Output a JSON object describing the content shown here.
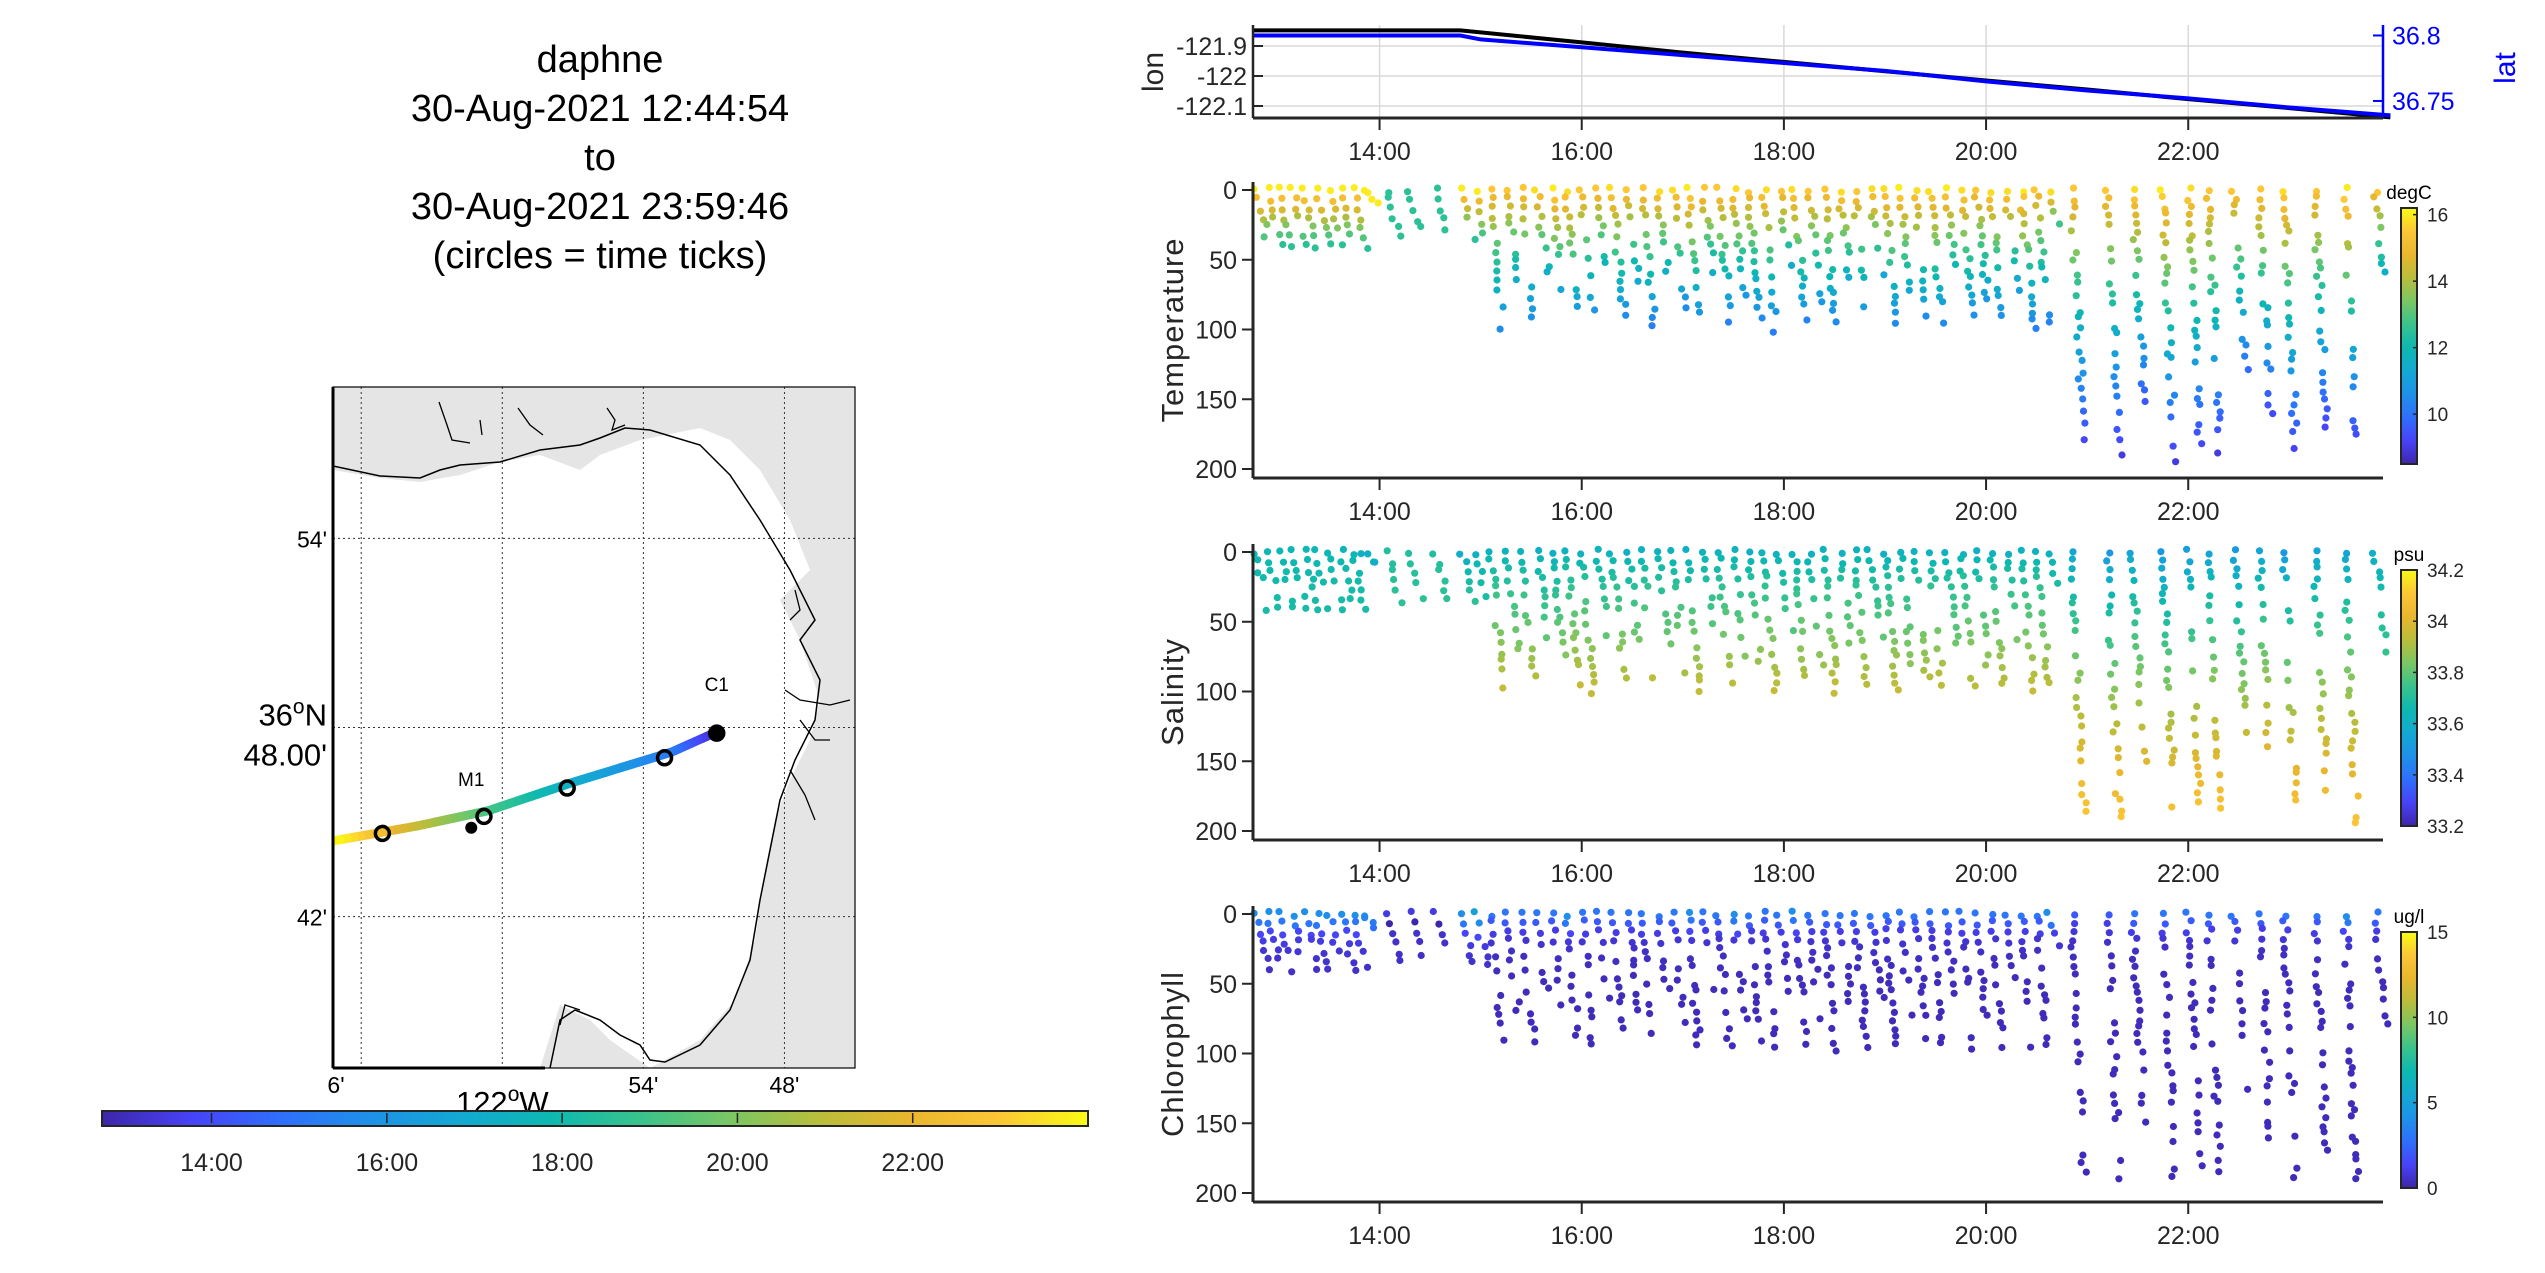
{
  "title": {
    "lines": [
      "daphne",
      "30-Aug-2021 12:44:54",
      "to",
      "30-Aug-2021 23:59:46",
      "(circles = time ticks)"
    ]
  },
  "map": {
    "lat_ticks": [
      {
        "deg": 36.9,
        "label": "54'"
      },
      {
        "deg": 36.8,
        "label_line1": "36",
        "label_sup": "o",
        "label_line1b": "N",
        "label_line2": "48.00'"
      },
      {
        "deg": 36.7,
        "label": "42'"
      }
    ],
    "lon_ticks": [
      {
        "deg": -122.1,
        "label": "6'"
      },
      {
        "deg": -122.0,
        "label_main": "122",
        "label_sup": "o",
        "label_end": "W"
      },
      {
        "deg": -121.9,
        "label": "54'"
      },
      {
        "deg": -121.8,
        "label": "48'"
      }
    ],
    "lon_range": [
      -122.12,
      -121.75
    ],
    "lat_range": [
      36.62,
      36.98
    ],
    "stations": [
      {
        "name": "C1",
        "lon": -121.848,
        "lat": 36.797
      },
      {
        "name": "M1",
        "lon": -122.022,
        "lat": 36.747
      }
    ],
    "track": [
      {
        "lon": -121.847,
        "lat": 36.798,
        "t": 12.75
      },
      {
        "lon": -121.88,
        "lat": 36.787,
        "t": 15.0
      },
      {
        "lon": -121.95,
        "lat": 36.771,
        "t": 17.0
      },
      {
        "lon": -122.01,
        "lat": 36.756,
        "t": 19.0
      },
      {
        "lon": -122.06,
        "lat": 36.748,
        "t": 21.0
      },
      {
        "lon": -122.12,
        "lat": 36.74,
        "t": 24.0
      }
    ],
    "time_tick_circles": [
      {
        "lon": -121.848,
        "lat": 36.797
      },
      {
        "lon": -121.885,
        "lat": 36.784
      },
      {
        "lon": -121.954,
        "lat": 36.768
      },
      {
        "lon": -122.013,
        "lat": 36.753
      },
      {
        "lon": -122.085,
        "lat": 36.744
      }
    ],
    "colorbar": {
      "range_hours": [
        12.75,
        24.0
      ],
      "ticks": [
        "14:00",
        "16:00",
        "18:00",
        "20:00",
        "22:00"
      ],
      "tick_hours": [
        14,
        16,
        18,
        20,
        22
      ]
    }
  },
  "chart_data": [
    {
      "type": "line",
      "title": "",
      "xlabel": "",
      "ylabel": "lon",
      "ylabel_right": "lat",
      "x_ticks": [
        "14:00",
        "16:00",
        "18:00",
        "20:00",
        "22:00"
      ],
      "x_tick_hours": [
        14,
        16,
        18,
        20,
        22
      ],
      "xlim_hours": [
        12.748,
        23.996
      ],
      "ylim": [
        -122.14,
        -121.83
      ],
      "y_ticks": [
        "-121.9",
        "-122",
        "-122.1"
      ],
      "y_tick_values": [
        -121.9,
        -122.0,
        -122.1
      ],
      "ylim_right": [
        36.737,
        36.808
      ],
      "y_ticks_right": [
        "36.8",
        "36.75"
      ],
      "y_tick_values_right": [
        36.8,
        36.75
      ],
      "grid": true,
      "series": [
        {
          "name": "lon",
          "color": "#000000",
          "x": [
            12.75,
            14.8,
            16.0,
            17.0,
            18.0,
            19.0,
            20.0,
            21.0,
            22.0,
            23.0,
            24.0
          ],
          "y": [
            -121.848,
            -121.848,
            -121.888,
            -121.922,
            -121.953,
            -121.984,
            -122.015,
            -122.045,
            -122.077,
            -122.107,
            -122.138
          ]
        },
        {
          "name": "lat",
          "color": "#0000ff",
          "axis": "right",
          "x": [
            12.75,
            14.8,
            15.0,
            16.0,
            17.0,
            18.0,
            19.0,
            20.0,
            21.0,
            22.0,
            23.0,
            24.0
          ],
          "y": [
            36.8,
            36.8,
            36.797,
            36.791,
            36.785,
            36.779,
            36.773,
            36.765,
            36.758,
            36.752,
            36.745,
            36.739
          ]
        }
      ]
    },
    {
      "type": "scatter",
      "ylabel": "Temperature",
      "colorbar_label": "degC",
      "colorbar_range": [
        8.5,
        16.2
      ],
      "colorbar_ticks": [
        "16",
        "14",
        "12",
        "10"
      ],
      "colorbar_tick_values": [
        16,
        14,
        12,
        10
      ],
      "x_ticks": [
        "14:00",
        "16:00",
        "18:00",
        "20:00",
        "22:00"
      ],
      "x_tick_hours": [
        14,
        16,
        18,
        20,
        22
      ],
      "ylim": [
        0,
        205
      ],
      "y_ticks": [
        "0",
        "50",
        "100",
        "150",
        "200"
      ],
      "y_tick_values": [
        0,
        50,
        100,
        150,
        200
      ],
      "profiles": "generated"
    },
    {
      "type": "scatter",
      "ylabel": "Salinity",
      "colorbar_label": "psu",
      "colorbar_range": [
        33.2,
        34.2
      ],
      "colorbar_ticks": [
        "34.2",
        "34",
        "33.8",
        "33.6",
        "33.4",
        "33.2"
      ],
      "colorbar_tick_values": [
        34.2,
        34.0,
        33.8,
        33.6,
        33.4,
        33.2
      ],
      "x_ticks": [
        "14:00",
        "16:00",
        "18:00",
        "20:00",
        "22:00"
      ],
      "x_tick_hours": [
        14,
        16,
        18,
        20,
        22
      ],
      "ylim": [
        0,
        205
      ],
      "y_ticks": [
        "0",
        "50",
        "100",
        "150",
        "200"
      ],
      "y_tick_values": [
        0,
        50,
        100,
        150,
        200
      ]
    },
    {
      "type": "scatter",
      "ylabel": "Chlorophyll",
      "colorbar_label": "ug/l",
      "colorbar_range": [
        0,
        15
      ],
      "colorbar_ticks": [
        "15",
        "10",
        "5",
        "0"
      ],
      "colorbar_tick_values": [
        15,
        10,
        5,
        0
      ],
      "x_ticks": [
        "14:00",
        "16:00",
        "18:00",
        "20:00",
        "22:00"
      ],
      "x_tick_hours": [
        14,
        16,
        18,
        20,
        22
      ],
      "ylim": [
        0,
        205
      ],
      "y_ticks": [
        "0",
        "50",
        "100",
        "150",
        "200"
      ],
      "y_tick_values": [
        0,
        50,
        100,
        150,
        200
      ]
    }
  ],
  "profiles": {
    "times": [
      12.78,
      12.9,
      13.02,
      13.14,
      13.26,
      13.38,
      13.5,
      13.62,
      13.74,
      13.84,
      14.08,
      14.3,
      14.55,
      14.82,
      14.95,
      15.1,
      15.25,
      15.4,
      15.55,
      15.7,
      15.85,
      16.0,
      16.15,
      16.3,
      16.45,
      16.6,
      16.75,
      16.9,
      17.05,
      17.2,
      17.35,
      17.5,
      17.65,
      17.8,
      17.95,
      18.1,
      18.25,
      18.4,
      18.55,
      18.7,
      18.85,
      19.0,
      19.15,
      19.3,
      19.45,
      19.6,
      19.75,
      19.9,
      20.05,
      20.2,
      20.35,
      20.5,
      20.62,
      20.85,
      21.2,
      21.45,
      21.75,
      22.0,
      22.2,
      22.45,
      22.7,
      22.95,
      23.25,
      23.55,
      23.85
    ],
    "max_depth": [
      40,
      40,
      40,
      40,
      40,
      40,
      40,
      40,
      40,
      8,
      35,
      35,
      35,
      35,
      38,
      98,
      70,
      90,
      60,
      72,
      95,
      100,
      60,
      90,
      70,
      98,
      65,
      85,
      100,
      60,
      95,
      75,
      90,
      100,
      55,
      95,
      80,
      100,
      70,
      95,
      60,
      100,
      85,
      90,
      100,
      65,
      95,
      80,
      95,
      70,
      100,
      95,
      30,
      185,
      190,
      150,
      195,
      180,
      190,
      130,
      160,
      190,
      170,
      195,
      80
    ],
    "temperature_surface": [
      16,
      16,
      16,
      16,
      16,
      16,
      16,
      16,
      16,
      16,
      12.5,
      12.5,
      12.5,
      16,
      16,
      15.5,
      15.5,
      15.5,
      15.8,
      16,
      15.8,
      15.5,
      15.5,
      15.8,
      15.5,
      15.5,
      15.8,
      15.8,
      16,
      15.5,
      15.5,
      15.8,
      15.5,
      15.8,
      15.5,
      15.8,
      15.5,
      15.5,
      15.8,
      15.5,
      15.8,
      15.8,
      16,
      15.8,
      15.8,
      16,
      15.8,
      15.5,
      15.8,
      15.8,
      16,
      15.5,
      15.8,
      15.5,
      15.5,
      15.8,
      16,
      15.8,
      15.5,
      15.5,
      15.5,
      15.8,
      15.5,
      16,
      15.5
    ],
    "temperature_bottom": [
      12.5,
      12.5,
      12.5,
      12.5,
      12.5,
      12.5,
      12.5,
      12.5,
      12.5,
      16,
      12.5,
      12.5,
      12.5,
      12.5,
      12.3,
      10.5,
      11.2,
      10.6,
      11.5,
      11.2,
      10.5,
      10.2,
      11.4,
      10.5,
      11,
      10.2,
      11.2,
      10.5,
      10.2,
      11.5,
      10.3,
      10.8,
      10.5,
      10.2,
      11.5,
      10.3,
      10.8,
      10.2,
      11,
      10.4,
      11.2,
      10.2,
      10.6,
      10.5,
      10.2,
      11.2,
      10.3,
      10.8,
      10.3,
      11,
      10.2,
      10.3,
      12,
      9.1,
      9.0,
      9.5,
      9.0,
      9.3,
      9.0,
      9.8,
      9.3,
      9.0,
      9.2,
      8.8,
      10.5
    ],
    "salinity_surface": [
      33.65,
      33.65,
      33.65,
      33.65,
      33.65,
      33.65,
      33.65,
      33.65,
      33.65,
      33.6,
      33.7,
      33.7,
      33.7,
      33.6,
      33.62,
      33.62,
      33.62,
      33.62,
      33.6,
      33.6,
      33.62,
      33.62,
      33.62,
      33.62,
      33.6,
      33.62,
      33.62,
      33.62,
      33.6,
      33.62,
      33.62,
      33.62,
      33.6,
      33.62,
      33.62,
      33.62,
      33.6,
      33.62,
      33.62,
      33.62,
      33.62,
      33.6,
      33.62,
      33.62,
      33.62,
      33.62,
      33.62,
      33.6,
      33.62,
      33.62,
      33.62,
      33.62,
      33.62,
      33.55,
      33.5,
      33.55,
      33.5,
      33.52,
      33.55,
      33.5,
      33.55,
      33.5,
      33.55,
      33.55,
      33.6
    ],
    "salinity_bottom": [
      33.68,
      33.68,
      33.68,
      33.68,
      33.68,
      33.68,
      33.68,
      33.68,
      33.68,
      33.6,
      33.72,
      33.72,
      33.72,
      33.72,
      33.7,
      33.95,
      33.85,
      33.92,
      33.8,
      33.85,
      33.95,
      33.95,
      33.8,
      33.92,
      33.85,
      33.95,
      33.82,
      33.9,
      33.95,
      33.8,
      33.93,
      33.85,
      33.92,
      33.95,
      33.78,
      33.93,
      33.88,
      33.95,
      33.85,
      33.93,
      33.8,
      33.95,
      33.88,
      33.92,
      33.95,
      33.82,
      33.93,
      33.88,
      33.93,
      33.85,
      33.95,
      33.93,
      33.7,
      34.1,
      34.1,
      34.0,
      34.1,
      34.08,
      34.1,
      33.95,
      34.05,
      34.1,
      34.05,
      34.1,
      33.75
    ],
    "chlorophyll_surface": [
      4,
      4,
      4,
      4,
      4,
      4,
      4,
      4,
      4,
      4,
      1,
      1,
      1,
      4,
      5,
      3,
      3,
      3,
      3,
      3,
      4,
      3,
      3,
      3,
      3,
      3,
      3,
      3,
      4,
      3,
      3,
      4,
      3,
      3,
      3,
      4,
      3,
      3,
      3,
      3,
      3,
      3,
      3,
      3,
      3,
      3,
      3,
      3,
      3,
      3,
      3,
      3,
      4,
      2,
      2,
      3,
      3,
      3,
      3,
      3,
      3,
      3,
      3,
      4,
      3
    ],
    "chlorophyll_bottom": [
      0.5,
      0.5,
      0.5,
      0.5,
      0.5,
      0.5,
      0.5,
      0.5,
      0.5,
      2,
      0.5,
      0.5,
      0.5,
      0.5,
      0.5,
      0.3,
      0.3,
      0.3,
      0.3,
      0.3,
      0.3,
      0.3,
      0.3,
      0.3,
      0.3,
      0.3,
      0.3,
      0.3,
      0.3,
      0.3,
      0.3,
      0.3,
      0.3,
      0.3,
      0.3,
      0.3,
      0.3,
      0.3,
      0.3,
      0.3,
      0.3,
      0.3,
      0.3,
      0.3,
      0.3,
      0.3,
      0.3,
      0.3,
      0.3,
      0.3,
      0.3,
      0.3,
      0.3,
      0.3,
      0.3,
      0.3,
      0.3,
      0.3,
      0.3,
      0.3,
      0.3,
      0.3,
      0.3,
      0.3,
      0.3
    ]
  },
  "colors": {
    "parula": [
      "#3e26a8",
      "#4743f8",
      "#2f6ffb",
      "#1e91e8",
      "#13a9d2",
      "#0db8b1",
      "#39c38c",
      "#7ac664",
      "#b9bd3b",
      "#e9b62e",
      "#fcc636",
      "#f9fb15"
    ],
    "land": "#e5e5e5",
    "axis": "#262626",
    "lat_axis": "#0000ff"
  }
}
